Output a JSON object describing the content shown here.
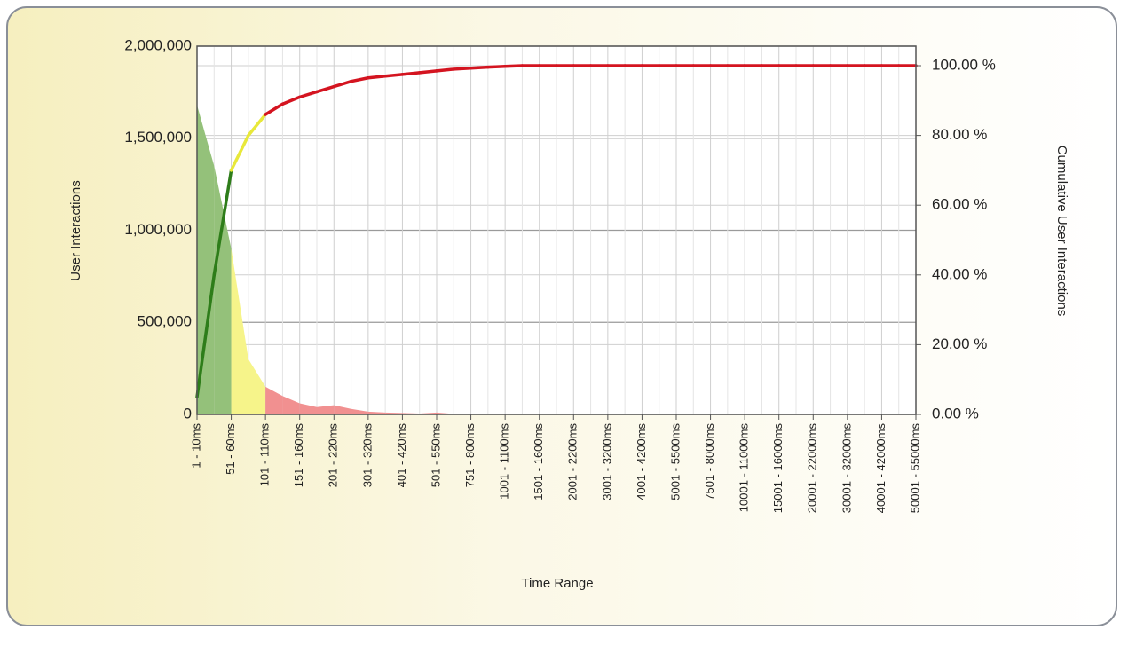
{
  "chart_data": {
    "type": "area-cumulative",
    "x_label": "Time Range",
    "y_label": "User Interactions",
    "y2_label": "Cumulative User Interactions",
    "categories": [
      "1 - 10ms",
      null,
      "51 - 60ms",
      null,
      "101 - 110ms",
      null,
      "151 - 160ms",
      null,
      "201 - 220ms",
      null,
      "301 - 320ms",
      null,
      "401 - 420ms",
      null,
      "501 - 550ms",
      null,
      "751 - 800ms",
      null,
      "1001 - 1100ms",
      null,
      "1501 - 1600ms",
      null,
      "2001 - 2200ms",
      null,
      "3001 - 3200ms",
      null,
      "4001 - 4200ms",
      null,
      "5001 - 5500ms",
      null,
      "7501 - 8000ms",
      null,
      "10001 - 11000ms",
      null,
      "15001 - 16000ms",
      null,
      "20001 - 22000ms",
      null,
      "30001 - 32000ms",
      null,
      "40001 - 42000ms",
      null,
      "50001 - 55000ms"
    ],
    "series": [
      {
        "kind": "area",
        "values": [
          1680000,
          1350000,
          900000,
          300000,
          150000,
          100000,
          60000,
          40000,
          50000,
          30000,
          15000,
          10000,
          8000,
          5000,
          10000,
          3000,
          2000,
          1000,
          500,
          0,
          0,
          0,
          0,
          0,
          0,
          0,
          0,
          0,
          0,
          0,
          0,
          0,
          0,
          0,
          0,
          0,
          0,
          0,
          0,
          0,
          0,
          0,
          0
        ],
        "colors": [
          "#94c17a",
          "#94c17a",
          "#f6f48a",
          "#f6f48a",
          "#f19090",
          "#f19090",
          "#f19090",
          "#f19090",
          "#f19090",
          "#f19090",
          "#f19090",
          "#f19090",
          "#f19090",
          "#f19090",
          "#f19090",
          "#f19090",
          "#f19090",
          "#f19090",
          "#f19090",
          "#f19090",
          "#f19090",
          "#f19090",
          "#f19090",
          "#f19090",
          "#f19090",
          "#f19090",
          "#f19090",
          "#f19090",
          "#f19090",
          "#f19090",
          "#f19090",
          "#f19090",
          "#f19090",
          "#f19090",
          "#f19090",
          "#f19090",
          "#f19090",
          "#f19090",
          "#f19090",
          "#f19090",
          "#f19090",
          "#f19090",
          "#f19090"
        ]
      },
      {
        "kind": "line",
        "axis": "y2",
        "values": [
          5,
          40,
          70,
          80,
          86,
          89,
          91,
          92.5,
          94,
          95.5,
          96.5,
          97,
          97.5,
          98,
          98.5,
          99,
          99.3,
          99.6,
          99.8,
          100,
          100,
          100,
          100,
          100,
          100,
          100,
          100,
          100,
          100,
          100,
          100,
          100,
          100,
          100,
          100,
          100,
          100,
          100,
          100,
          100,
          100,
          100,
          100
        ],
        "colors": [
          "#2e7d1a",
          "#2e7d1a",
          "#e8e83a",
          "#e8e83a",
          "#d41420",
          "#d41420",
          "#d41420",
          "#d41420",
          "#d41420",
          "#d41420",
          "#d41420",
          "#d41420",
          "#d41420",
          "#d41420",
          "#d41420",
          "#d41420",
          "#d41420",
          "#d41420",
          "#d41420",
          "#d41420",
          "#d41420",
          "#d41420",
          "#d41420",
          "#d41420",
          "#d41420",
          "#d41420",
          "#d41420",
          "#d41420",
          "#d41420",
          "#d41420",
          "#d41420",
          "#d41420",
          "#d41420",
          "#d41420",
          "#d41420",
          "#d41420",
          "#d41420",
          "#d41420",
          "#d41420",
          "#d41420",
          "#d41420",
          "#d41420",
          "#d41420"
        ]
      }
    ],
    "ylim": [
      0,
      2000000
    ],
    "yticks": [
      0,
      {
        "value": 500000,
        "label": "500,000"
      },
      {
        "value": 1000000,
        "label": "1,000,000"
      },
      {
        "value": 1500000,
        "label": "1,500,000"
      },
      {
        "value": 2000000,
        "label": "2,000,000"
      }
    ],
    "y2lim": [
      0,
      105.6
    ],
    "y2ticks": [
      {
        "value": 0,
        "label": "0.00 %"
      },
      {
        "value": 20,
        "label": "20.00 %"
      },
      {
        "value": 40,
        "label": "40.00 %"
      },
      {
        "value": 60,
        "label": "60.00 %"
      },
      {
        "value": 80,
        "label": "80.00 %"
      },
      {
        "value": 100,
        "label": "100.00 %"
      }
    ],
    "grid": true
  }
}
